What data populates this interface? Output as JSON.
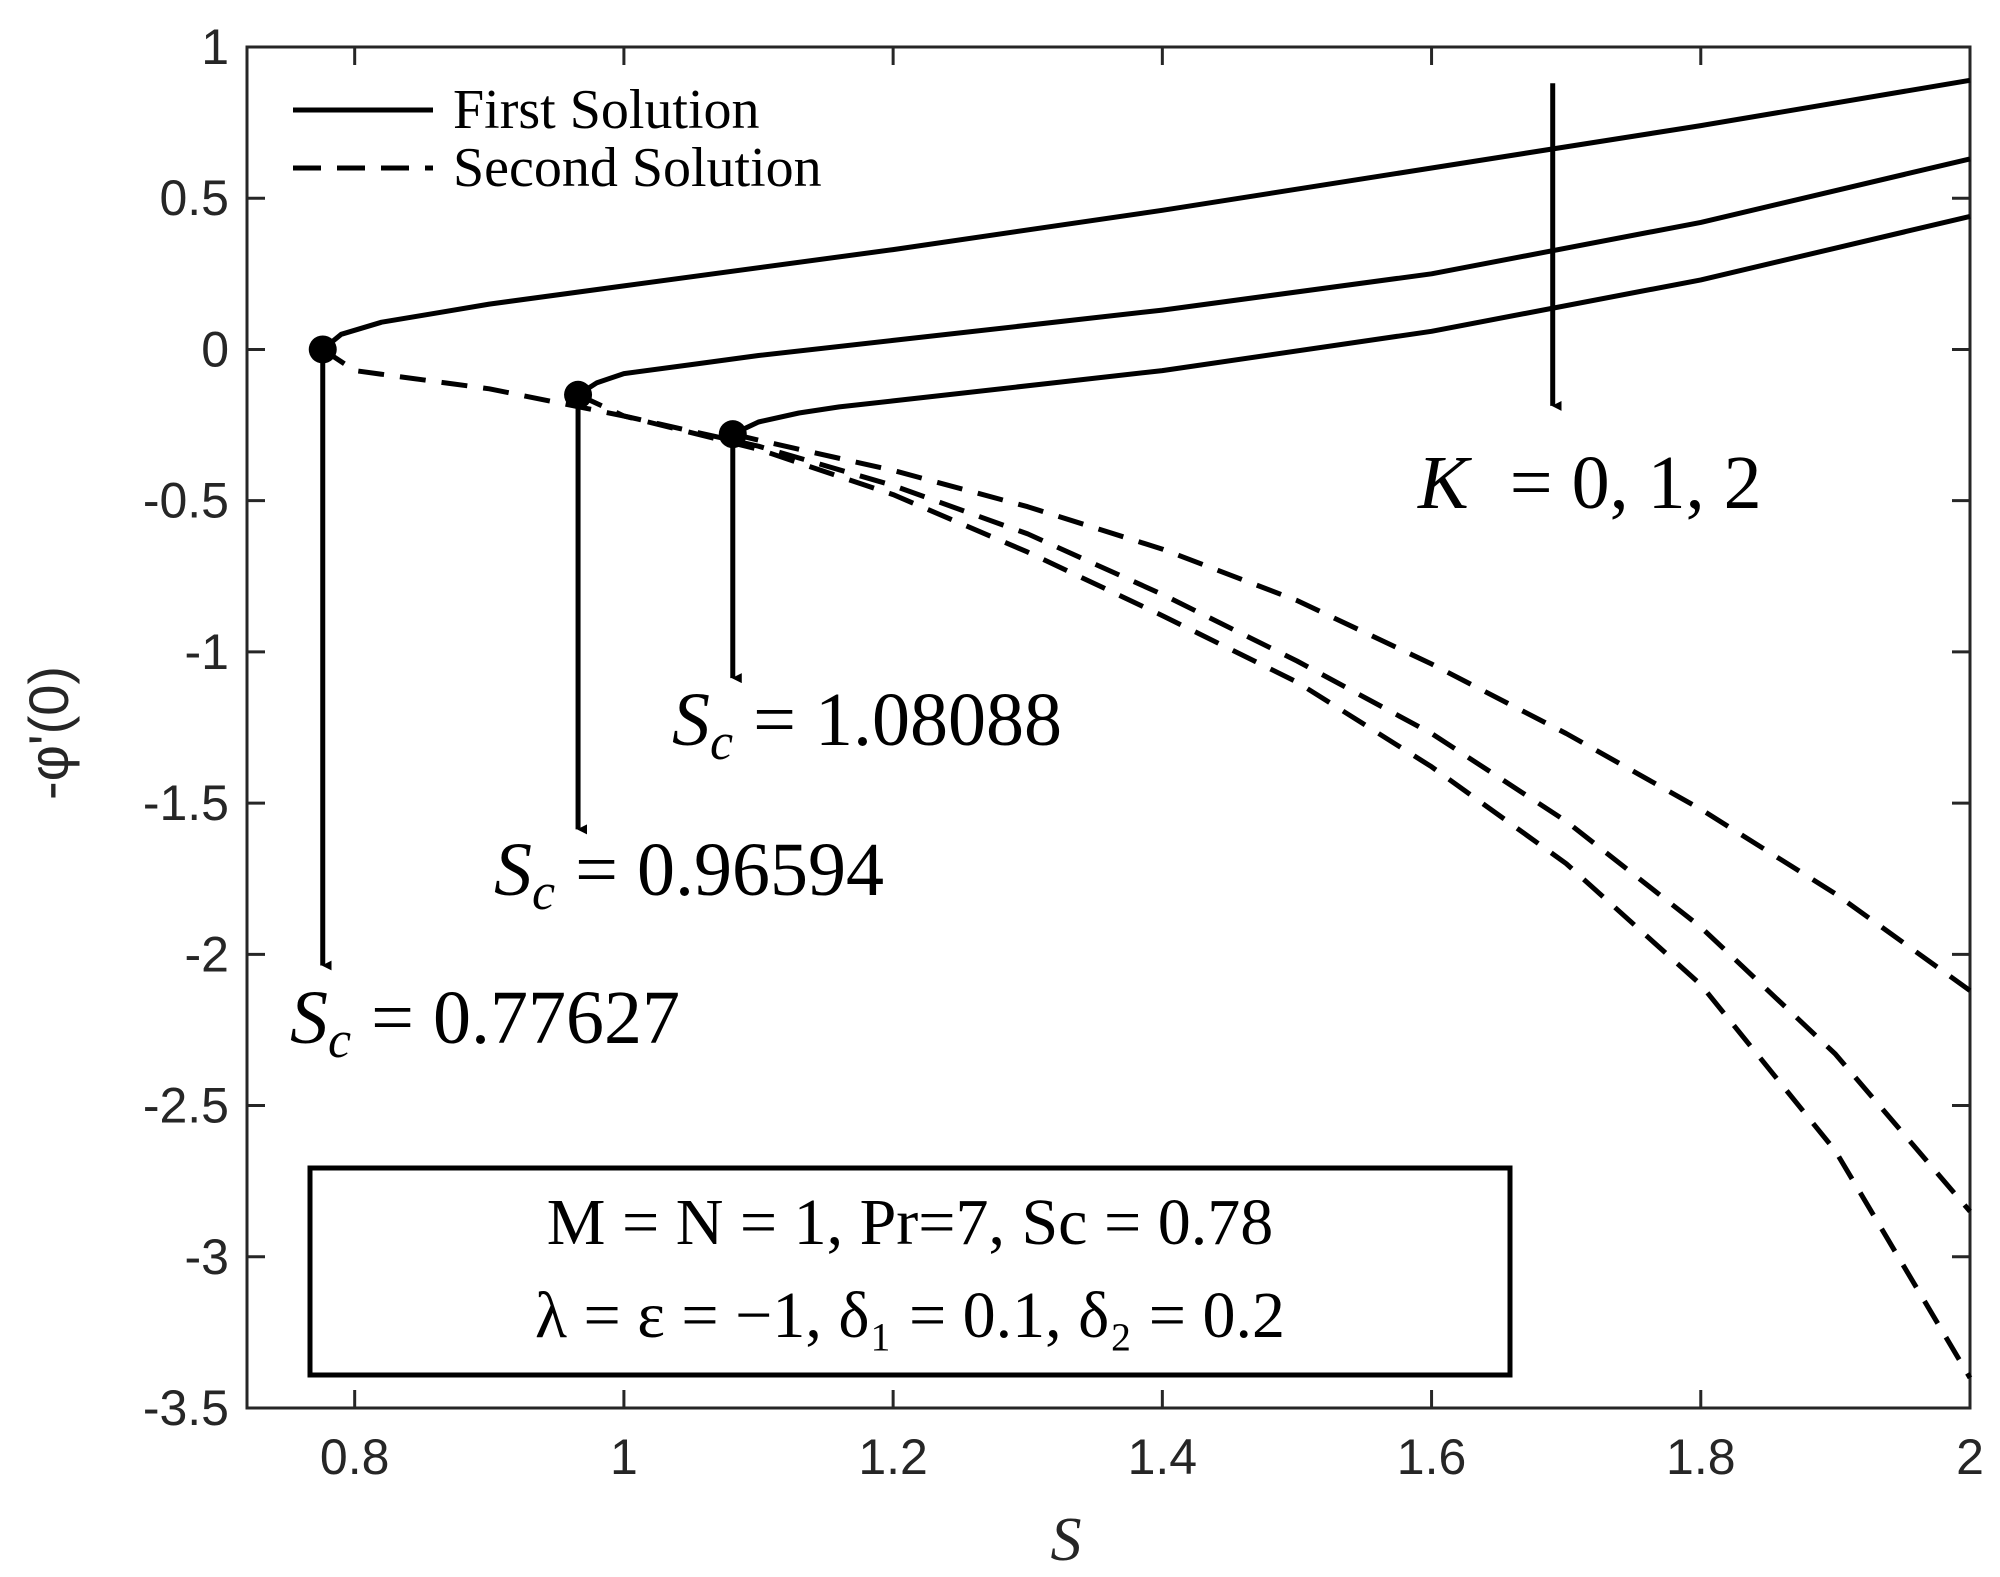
{
  "chart_data": {
    "type": "line",
    "xlabel": "S",
    "ylabel": "-φ'(0)",
    "xlim": [
      0.72,
      2.0
    ],
    "ylim": [
      -3.5,
      1.0
    ],
    "xticks": [
      0.8,
      1.0,
      1.2,
      1.4,
      1.6,
      1.8,
      2.0
    ],
    "xtick_labels": [
      "0.8",
      "1",
      "1.2",
      "1.4",
      "1.6",
      "1.8",
      "2"
    ],
    "yticks": [
      1.0,
      0.5,
      0.0,
      -0.5,
      -1.0,
      -1.5,
      -2.0,
      -2.5,
      -3.0,
      -3.5
    ],
    "ytick_labels": [
      "1",
      "0.5",
      "0",
      "-0.5",
      "-1",
      "-1.5",
      "-2",
      "-2.5",
      "-3",
      "-3.5"
    ],
    "grid": false,
    "legend": {
      "position": "top-left",
      "entries": [
        {
          "label": "First Solution",
          "style": "solid"
        },
        {
          "label": "Second Solution",
          "style": "dashed"
        }
      ]
    },
    "series": [
      {
        "style": "solid",
        "x": [
          0.77627,
          0.79,
          0.82,
          0.86,
          0.9,
          1.0,
          1.2,
          1.4,
          1.6,
          1.8,
          2.0
        ],
        "y": [
          0.0,
          0.05,
          0.09,
          0.12,
          0.15,
          0.21,
          0.33,
          0.46,
          0.6,
          0.74,
          0.89
        ]
      },
      {
        "style": "solid",
        "x": [
          0.96594,
          0.98,
          1.0,
          1.05,
          1.1,
          1.2,
          1.4,
          1.6,
          1.8,
          2.0
        ],
        "y": [
          -0.15,
          -0.11,
          -0.08,
          -0.05,
          -0.02,
          0.03,
          0.13,
          0.25,
          0.42,
          0.63
        ]
      },
      {
        "style": "solid",
        "x": [
          1.08088,
          1.1,
          1.13,
          1.16,
          1.2,
          1.4,
          1.6,
          1.8,
          2.0
        ],
        "y": [
          -0.28,
          -0.24,
          -0.21,
          -0.19,
          -0.17,
          -0.07,
          0.06,
          0.23,
          0.44
        ]
      },
      {
        "style": "dashed",
        "x": [
          0.77627,
          0.8,
          0.9,
          1.0,
          1.1,
          1.2,
          1.3,
          1.4,
          1.5,
          1.6,
          1.7,
          1.8,
          1.9,
          2.0
        ],
        "y": [
          0.0,
          -0.07,
          -0.13,
          -0.22,
          -0.33,
          -0.48,
          -0.67,
          -0.88,
          -1.1,
          -1.38,
          -1.7,
          -2.1,
          -2.65,
          -3.4
        ]
      },
      {
        "style": "dashed",
        "x": [
          0.96594,
          1.0,
          1.1,
          1.2,
          1.3,
          1.4,
          1.5,
          1.6,
          1.7,
          1.8,
          1.9,
          2.0
        ],
        "y": [
          -0.15,
          -0.22,
          -0.32,
          -0.45,
          -0.61,
          -0.81,
          -1.03,
          -1.27,
          -1.56,
          -1.91,
          -2.33,
          -2.85
        ]
      },
      {
        "style": "dashed",
        "x": [
          1.08088,
          1.1,
          1.2,
          1.3,
          1.4,
          1.5,
          1.6,
          1.7,
          1.8,
          1.9,
          2.0
        ],
        "y": [
          -0.28,
          -0.3,
          -0.4,
          -0.52,
          -0.66,
          -0.83,
          -1.04,
          -1.27,
          -1.52,
          -1.8,
          -2.12
        ]
      }
    ],
    "turning_points": [
      {
        "x": 0.77627,
        "y": 0.0
      },
      {
        "x": 0.96594,
        "y": -0.15
      },
      {
        "x": 1.08088,
        "y": -0.28
      }
    ],
    "annotations": {
      "arrow_k": {
        "x": 1.69,
        "y_from": 0.88,
        "y_to": -0.2
      },
      "k_label": {
        "lhs": "K",
        "rhs": "= 0, 1, 2",
        "x": 1.57,
        "y": -0.45
      },
      "critical": [
        {
          "lhs": "S",
          "sub": "c",
          "value": "= 1.08088",
          "arrow_x": 1.08088,
          "arrow_from": -0.28,
          "arrow_to": -1.1,
          "label_x": 1.03,
          "label_y": -1.3
        },
        {
          "lhs": "S",
          "sub": "c",
          "value": "= 0.96594",
          "arrow_x": 0.96594,
          "arrow_from": -0.15,
          "arrow_to": -1.6,
          "label_x": 0.9,
          "label_y": -1.8
        },
        {
          "lhs": "S",
          "sub": "c",
          "value": "= 0.77627",
          "arrow_x": 0.77627,
          "arrow_from": 0.0,
          "arrow_to": -2.05,
          "label_x": 0.73,
          "label_y": -2.3
        }
      ],
      "param_box": {
        "line1": "M = N = 1, Pr=7, Sc = 0.78",
        "line2": "λ = ε = −1, δ₁ = 0.1, δ₂ = 0.2"
      }
    }
  }
}
